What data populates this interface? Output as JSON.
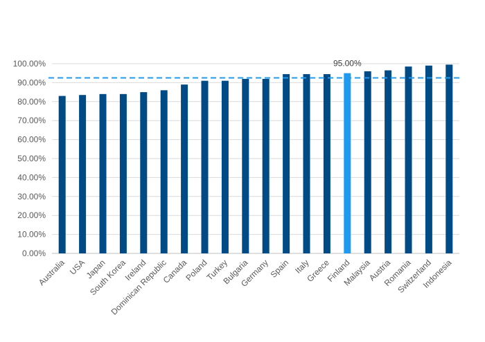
{
  "chart_data": {
    "type": "bar",
    "title": "",
    "xlabel": "",
    "ylabel": "",
    "ylim": [
      0,
      100
    ],
    "ytick_step": 10,
    "ytick_labels": [
      "0.00%",
      "10.00%",
      "20.00%",
      "30.00%",
      "40.00%",
      "50.00%",
      "60.00%",
      "70.00%",
      "80.00%",
      "90.00%",
      "100.00%"
    ],
    "categories": [
      "Australia",
      "USA",
      "Japan",
      "South Korea",
      "Ireland",
      "Dominican Republic",
      "Canada",
      "Poland",
      "Turkey",
      "Bulgaria",
      "Germany",
      "Spain",
      "Italy",
      "Greece",
      "Finland",
      "Malaysia",
      "Austria",
      "Romania",
      "Switzerland",
      "Indonesia"
    ],
    "values": [
      83,
      83.5,
      84,
      84,
      85,
      86,
      89,
      91,
      91,
      92,
      92,
      94.5,
      94.5,
      94.5,
      95,
      96,
      96.5,
      98.5,
      99,
      99.5
    ],
    "highlight_category": "Finland",
    "highlight_label": "95.00%",
    "reference_line": 92.5,
    "grid": true,
    "colors": {
      "bar": "#004a86",
      "highlight": "#1e9bf0",
      "reference_line": "#1e9bf0",
      "grid": "#d9d9d9"
    }
  }
}
